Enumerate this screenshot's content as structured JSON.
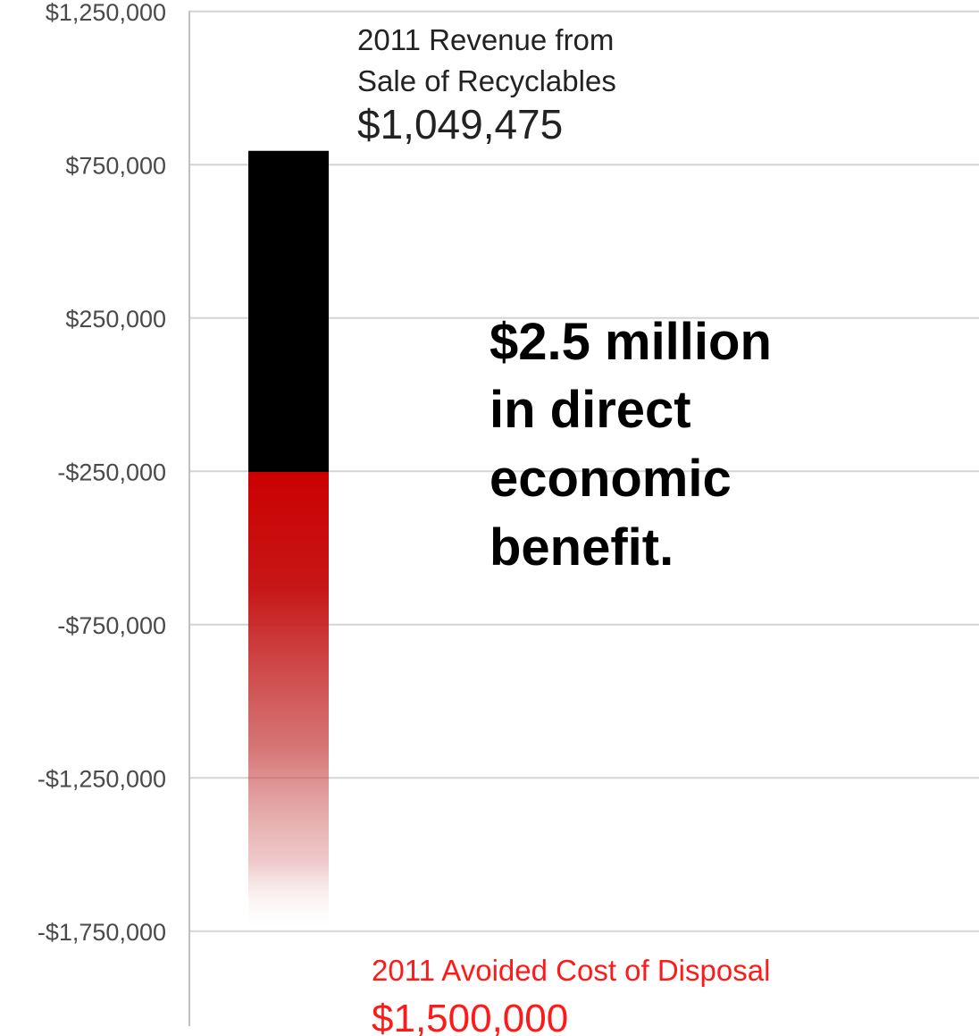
{
  "chart_data": {
    "type": "bar",
    "title": "",
    "xlabel": "",
    "ylabel": "",
    "ylim": [
      -1750000,
      1500000
    ],
    "yticks": [
      1250000,
      750000,
      250000,
      -250000,
      -750000,
      -1250000,
      -1750000
    ],
    "ytick_labels": [
      "$1,250,000",
      "$750,000",
      "$250,000",
      "-$250,000",
      "-$750,000",
      "-$1,250,000",
      "-$1,750,000"
    ],
    "grid": true,
    "stacked": true,
    "series": [
      {
        "label": "2011 Revenue from Sale of Recyclables",
        "value": 1049475,
        "value_label": "$1,049,475",
        "color": "#000000",
        "label_color": "#222222"
      },
      {
        "label": "2011 Avoided Cost of Disposal",
        "value": -1500000,
        "value_label": "$1,500,000",
        "color": "#cc0000",
        "label_color": "#ff1a1a",
        "fill": "gradient-fade"
      }
    ],
    "annotation_lines": [
      "$2.5 million",
      "in direct",
      "economic",
      "benefit."
    ],
    "colors": {
      "grid": "#d4d4d4",
      "axis": "#c0c0c0",
      "tick_text": "#4a4a4a"
    }
  }
}
